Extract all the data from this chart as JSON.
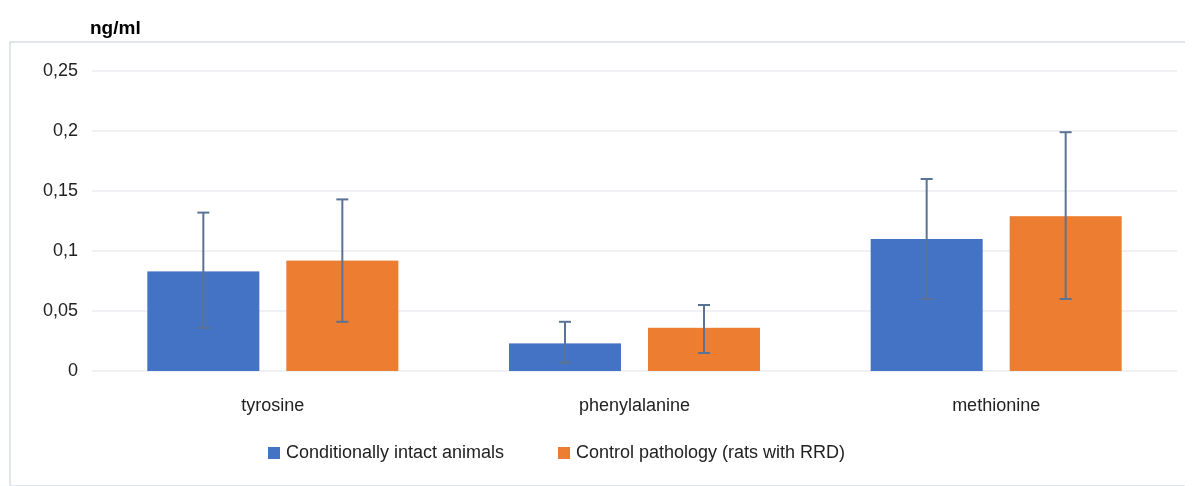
{
  "chart_data": {
    "type": "bar",
    "ylabel": "ng/ml",
    "categories": [
      "tyrosine",
      "phenylalanine",
      "methionine"
    ],
    "series": [
      {
        "name": "Conditionally intact animals",
        "color": "#4472c4",
        "values": [
          0.083,
          0.023,
          0.11
        ],
        "errors": [
          [
            0.036,
            0.132
          ],
          [
            0.007,
            0.041
          ],
          [
            0.06,
            0.16
          ]
        ]
      },
      {
        "name": "Control pathology (rats with RRD)",
        "color": "#ed7d31",
        "values": [
          0.092,
          0.036,
          0.129
        ],
        "errors": [
          [
            0.041,
            0.143
          ],
          [
            0.015,
            0.055
          ],
          [
            0.06,
            0.199
          ]
        ]
      }
    ],
    "ylim": [
      0,
      0.25
    ],
    "yticks": [
      {
        "value": 0,
        "label": "0"
      },
      {
        "value": 0.05,
        "label": "0,05"
      },
      {
        "value": 0.1,
        "label": "0,1"
      },
      {
        "value": 0.15,
        "label": "0,15"
      },
      {
        "value": 0.2,
        "label": "0,2"
      },
      {
        "value": 0.25,
        "label": "0,25"
      }
    ],
    "grid": "y",
    "legend": "bottom"
  }
}
